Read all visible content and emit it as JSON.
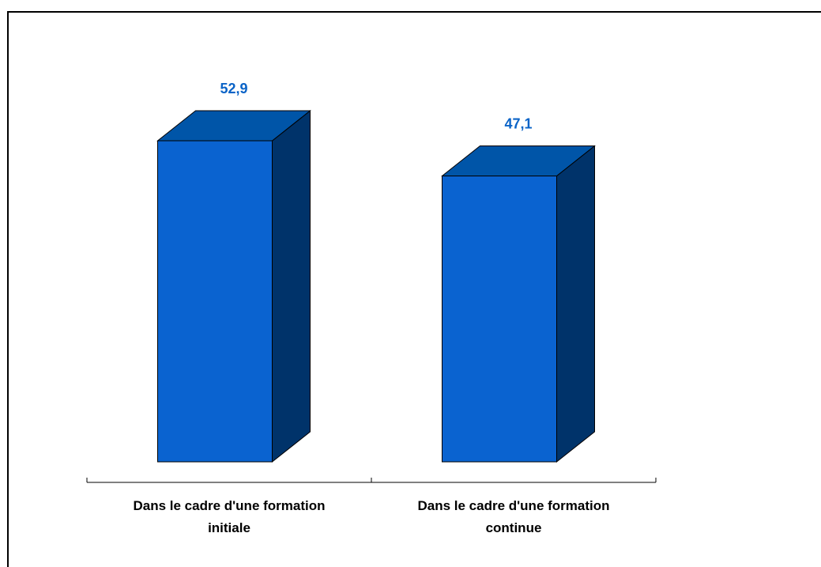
{
  "chart_data": {
    "type": "bar",
    "categories": [
      [
        "Dans le cadre d'une formation",
        "initiale"
      ],
      [
        "Dans le cadre d'une formation",
        "continue"
      ]
    ],
    "values": [
      52.9,
      47.1
    ],
    "value_labels": [
      "52,9",
      "47,1"
    ],
    "title": "",
    "xlabel": "",
    "ylabel": "",
    "ylim": [
      0,
      55
    ],
    "grid": false,
    "legend": "none",
    "style": "3d-column",
    "colors": {
      "front": "#0a63d0",
      "top": "#0055a8",
      "side": "#00336a",
      "label": "#0a63c7"
    }
  }
}
